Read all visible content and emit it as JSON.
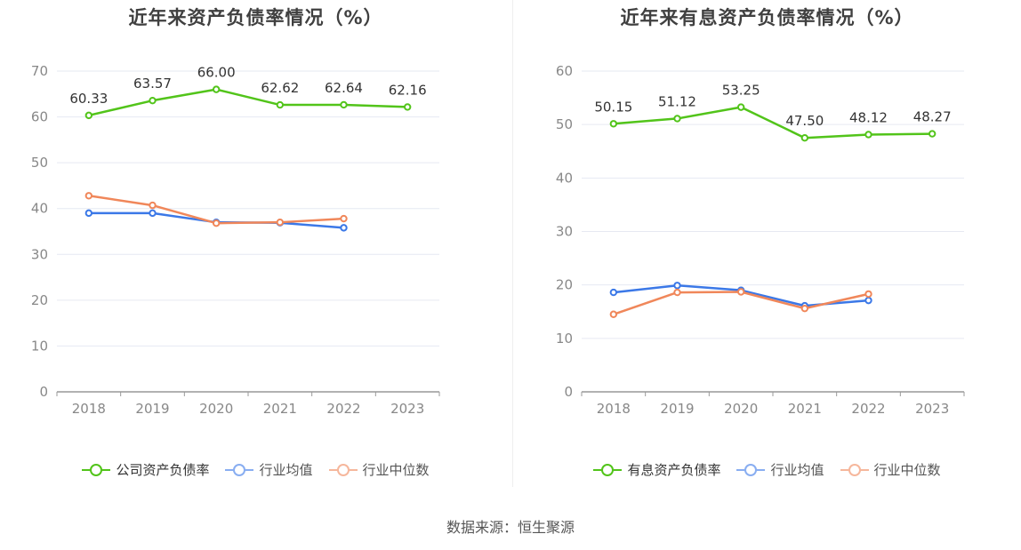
{
  "colors": {
    "company": "#52c41a",
    "industry_avg": "#3b78e7",
    "industry_median": "#f0875a",
    "grid": "#e6e9f2",
    "axis": "#999999"
  },
  "chart_data": [
    {
      "type": "line",
      "title": "近年来资产负债率情况（%）",
      "categories": [
        "2018",
        "2019",
        "2020",
        "2021",
        "2022",
        "2023"
      ],
      "ylim": [
        0,
        70
      ],
      "yticks": [
        0,
        10,
        20,
        30,
        40,
        50,
        60,
        70
      ],
      "grid": true,
      "legend_position": "bottom",
      "series": [
        {
          "name": "公司资产负债率",
          "color_key": "company",
          "values": [
            60.33,
            63.57,
            66.0,
            62.62,
            62.64,
            62.16
          ],
          "labels": [
            "60.33",
            "63.57",
            "66.00",
            "62.62",
            "62.64",
            "62.16"
          ]
        },
        {
          "name": "行业均值",
          "color_key": "industry_avg",
          "values": [
            39.0,
            39.0,
            37.0,
            36.9,
            35.8,
            null
          ]
        },
        {
          "name": "行业中位数",
          "color_key": "industry_median",
          "values": [
            42.8,
            40.7,
            36.8,
            37.0,
            37.8,
            null
          ]
        }
      ]
    },
    {
      "type": "line",
      "title": "近年来有息资产负债率情况（%）",
      "categories": [
        "2018",
        "2019",
        "2020",
        "2021",
        "2022",
        "2023"
      ],
      "ylim": [
        0,
        60
      ],
      "yticks": [
        0,
        10,
        20,
        30,
        40,
        50,
        60
      ],
      "grid": true,
      "legend_position": "bottom",
      "series": [
        {
          "name": "有息资产负债率",
          "color_key": "company",
          "values": [
            50.15,
            51.12,
            53.25,
            47.5,
            48.12,
            48.27
          ],
          "labels": [
            "50.15",
            "51.12",
            "53.25",
            "47.50",
            "48.12",
            "48.27"
          ]
        },
        {
          "name": "行业均值",
          "color_key": "industry_avg",
          "values": [
            18.6,
            19.9,
            19.0,
            16.1,
            17.1,
            null
          ]
        },
        {
          "name": "行业中位数",
          "color_key": "industry_median",
          "values": [
            14.5,
            18.6,
            18.7,
            15.6,
            18.3,
            null
          ]
        }
      ]
    }
  ],
  "footer": {
    "source_text": "数据来源：恒生聚源"
  }
}
